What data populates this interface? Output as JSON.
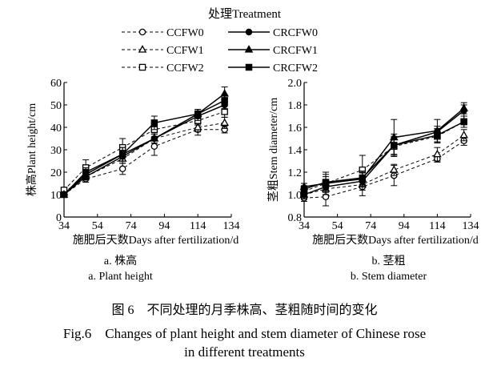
{
  "legend": {
    "title": "处理Treatment"
  },
  "chart_data": [
    {
      "type": "line",
      "ylabel": "株高Plant height/cm",
      "xlabel": "施肥后天数Days after fertilization/d",
      "xlim": [
        34,
        134
      ],
      "xticks": [
        34,
        54,
        74,
        94,
        114,
        134
      ],
      "ylim": [
        0,
        60
      ],
      "yticks": [
        0,
        10,
        20,
        30,
        40,
        50,
        60
      ],
      "x": [
        34,
        47,
        69,
        88,
        114,
        130
      ],
      "series": [
        {
          "name": "CCFW0",
          "dash": true,
          "marker": "circle-open",
          "values": [
            10,
            17,
            21.5,
            31.5,
            39,
            39
          ],
          "err": [
            1,
            1.5,
            2.5,
            4,
            2.5,
            1.5
          ]
        },
        {
          "name": "CCFW1",
          "dash": true,
          "marker": "triangle-open",
          "values": [
            11,
            18,
            26,
            35,
            40,
            42
          ],
          "err": [
            1,
            1.5,
            2,
            2,
            2,
            2.5
          ]
        },
        {
          "name": "CCFW2",
          "dash": true,
          "marker": "square-open",
          "values": [
            12,
            22,
            31,
            39,
            43,
            47
          ],
          "err": [
            1,
            3.5,
            4,
            3,
            2,
            2.5
          ]
        },
        {
          "name": "CRCFW0",
          "dash": false,
          "marker": "circle",
          "values": [
            10,
            18,
            27,
            35,
            45,
            50
          ],
          "err": [
            1,
            1.5,
            2,
            2,
            2,
            2
          ]
        },
        {
          "name": "CRCFW1",
          "dash": false,
          "marker": "triangle",
          "values": [
            10,
            19,
            28,
            35,
            46,
            55
          ],
          "err": [
            1,
            2,
            3,
            2,
            2,
            3
          ]
        },
        {
          "name": "CRCFW2",
          "dash": false,
          "marker": "square",
          "values": [
            10,
            20,
            28,
            42,
            46,
            52
          ],
          "err": [
            1,
            2,
            3,
            3,
            2,
            2.5
          ]
        }
      ],
      "caption_cn": "a. 株高",
      "caption_en": "a. Plant height"
    },
    {
      "type": "line",
      "ylabel": "茎粗Stem diameter/cm",
      "xlabel": "施肥后天数Days after fertilization/d",
      "xlim": [
        34,
        134
      ],
      "xticks": [
        34,
        54,
        74,
        94,
        114,
        134
      ],
      "ylim": [
        0.8,
        2.0
      ],
      "yticks": [
        "0.8",
        "1.0",
        "1.2",
        "1.4",
        "1.6",
        "1.8",
        "2.0"
      ],
      "x": [
        34,
        47,
        69,
        88,
        114,
        130
      ],
      "series": [
        {
          "name": "CCFW0",
          "dash": true,
          "marker": "circle-open",
          "values": [
            0.97,
            0.98,
            1.07,
            1.17,
            1.32,
            1.48
          ],
          "err": [
            0.03,
            0.08,
            0.08,
            0.09,
            0.03,
            0.04
          ]
        },
        {
          "name": "CCFW1",
          "dash": true,
          "marker": "triangle-open",
          "values": [
            1.0,
            1.05,
            1.09,
            1.22,
            1.36,
            1.53
          ],
          "err": [
            0.03,
            0.05,
            0.05,
            0.05,
            0.06,
            0.05
          ]
        },
        {
          "name": "CCFW2",
          "dash": true,
          "marker": "square-open",
          "values": [
            1.03,
            1.1,
            1.22,
            1.43,
            1.52,
            1.65
          ],
          "err": [
            0.04,
            0.1,
            0.13,
            0.08,
            0.06,
            0.05
          ]
        },
        {
          "name": "CRCFW0",
          "dash": false,
          "marker": "circle",
          "values": [
            1.0,
            1.07,
            1.12,
            1.44,
            1.56,
            1.75
          ],
          "err": [
            0.04,
            0.05,
            0.05,
            0.1,
            0.05,
            0.05
          ]
        },
        {
          "name": "CRCFW1",
          "dash": false,
          "marker": "triangle",
          "values": [
            1.07,
            1.1,
            1.14,
            1.51,
            1.57,
            1.77
          ],
          "err": [
            0.03,
            0.06,
            0.06,
            0.16,
            0.1,
            0.05
          ]
        },
        {
          "name": "CRCFW2",
          "dash": false,
          "marker": "square",
          "values": [
            1.05,
            1.11,
            1.15,
            1.44,
            1.53,
            1.65
          ],
          "err": [
            0.03,
            0.07,
            0.06,
            0.08,
            0.06,
            0.05
          ]
        }
      ],
      "caption_cn": "b. 茎粗",
      "caption_en": "b. Stem diameter"
    }
  ],
  "figure": {
    "title_cn": "图 6　不同处理的月季株高、茎粗随时间的变化",
    "title_en_1": "Fig.6　Changes of plant height and stem diameter of Chinese rose",
    "title_en_2": "in different treatments"
  }
}
